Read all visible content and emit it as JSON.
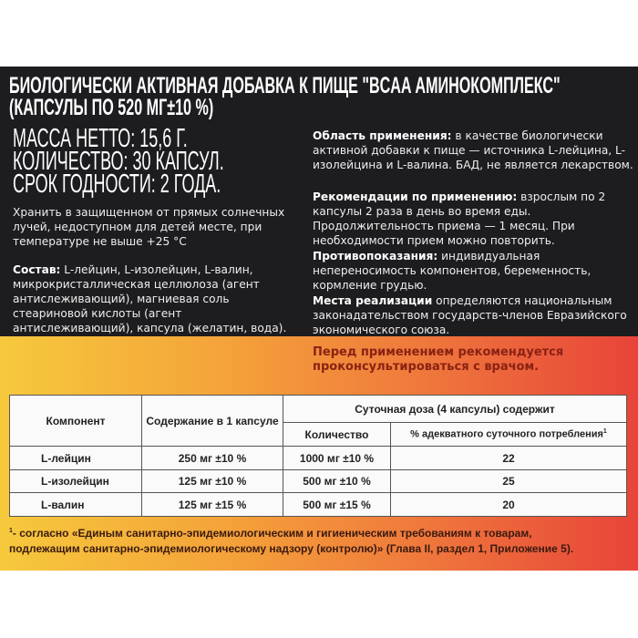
{
  "header": {
    "title_line1": "БИОЛОГИЧЕСКИ АКТИВНАЯ ДОБАВКА К ПИЩЕ \"BCAA АМИНОКОМПЛЕКС\"",
    "title_line2": "(КАПСУЛЫ ПО 520 МГ±10 %)"
  },
  "specs": [
    "МАССА НЕТТО: 15,6 Г.",
    "КОЛИЧЕСТВО: 30 КАПСУЛ.",
    "СРОК ГОДНОСТИ: 2 ГОДА."
  ],
  "storage": "Хранить в защищенном от прямых солнечных лучей, недоступном для детей месте, при температуре не выше +25 °С",
  "composition": {
    "label": "Состав:",
    "text": "L-лейцин, L-изолейцин, L-валин, микрокристаллическая целлюлоза (агент антислеживающий), магниевая соль стеариновой кислоты (агент антислеживающий), капсула (желатин, вода)."
  },
  "sections": [
    {
      "label": "Область применения:",
      "text": "в качестве биологически активной добавки к пище — источника L-лейцина, L-изолейцина и L-валина. БАД, не является лекарством."
    },
    {
      "label": "Рекомендации по применению:",
      "text": "взрослым по 2 капсулы 2 раза в день во время еды. Продолжительность приема — 1 месяц. При необходимости прием можно повторить."
    },
    {
      "label": "Противопоказания:",
      "text": "индивидуальная непереносимость компонентов, беременность, кормление грудью."
    },
    {
      "label": "Места реализации",
      "text": "определяются национальным законадательством государств-членов Евразийского экономического союза."
    }
  ],
  "warning": "Перед применением рекомендуется проконсультироваться с врачом.",
  "table": {
    "headers": {
      "component": "Компонент",
      "per_capsule": "Содержание в 1 капсуле",
      "daily": "Суточная доза (4 капсулы) содержит",
      "amount": "Количество",
      "percent": "% адекватного суточного потребления",
      "percent_sup": "1"
    },
    "rows": [
      {
        "component": "L-лейцин",
        "per_capsule": "250 мг ±10 %",
        "amount": "1000 мг ±10 %",
        "percent": "22"
      },
      {
        "component": "L-изолейцин",
        "per_capsule": "125 мг ±10 %",
        "amount": "500 мг ±10 %",
        "percent": "25"
      },
      {
        "component": "L-валин",
        "per_capsule": "125 мг ±15 %",
        "amount": "500 мг ±15 %",
        "percent": "20"
      }
    ]
  },
  "footnote": {
    "mark": "1",
    "line1": "- согласно «Единым санитарно-эпидемиологическим и гигиеническим требованиям к товарам,",
    "line2": "подлежащим санитарно-эпидемиологическому надзору (контролю)» (Глава II, раздел 1, Приложение 5)."
  },
  "colors": {
    "dark_panel": "#1d1d20",
    "gradient_left": "#f6c93c",
    "gradient_right": "#e8443a",
    "warning": "#8a2214"
  }
}
